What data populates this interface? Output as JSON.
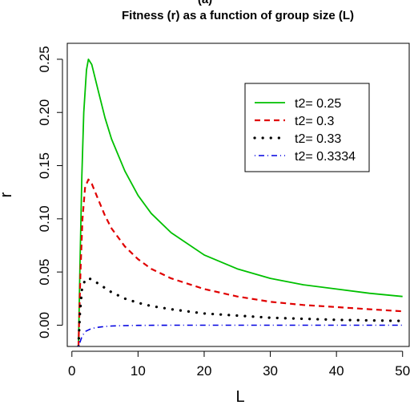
{
  "figure": {
    "cropped_label": "(a)"
  },
  "chart_data": {
    "type": "line",
    "title": "Fitness (r) as a function of group size (L)",
    "xlabel": "L",
    "ylabel": "r",
    "xlim": [
      -0.7,
      51
    ],
    "ylim": [
      -0.02,
      0.265
    ],
    "x_ticks": [
      0,
      10,
      20,
      30,
      40,
      50
    ],
    "x_tick_labels": [
      "0",
      "10",
      "20",
      "30",
      "40",
      "50"
    ],
    "y_ticks": [
      0.0,
      0.05,
      0.1,
      0.15,
      0.2,
      0.25
    ],
    "y_tick_labels": [
      "0.00",
      "0.05",
      "0.10",
      "0.15",
      "0.20",
      "0.25"
    ],
    "grid": false,
    "legend_position": "top-right",
    "series": [
      {
        "name": "t2= 0.25",
        "color": "#00c000",
        "line_style": "solid",
        "x": [
          1.0,
          1.2,
          1.5,
          1.8,
          2.2,
          2.5,
          3,
          4,
          5,
          6,
          8,
          10,
          12,
          15,
          20,
          25,
          30,
          35,
          40,
          45,
          50
        ],
        "y": [
          -0.02,
          0.05,
          0.14,
          0.2,
          0.24,
          0.25,
          0.245,
          0.22,
          0.195,
          0.175,
          0.145,
          0.122,
          0.105,
          0.087,
          0.066,
          0.053,
          0.044,
          0.038,
          0.034,
          0.03,
          0.027
        ]
      },
      {
        "name": "t2= 0.3",
        "color": "#e00000",
        "line_style": "dashed",
        "x": [
          1.0,
          1.3,
          1.6,
          2.0,
          2.5,
          3,
          4,
          5,
          6,
          8,
          10,
          12,
          15,
          20,
          25,
          30,
          35,
          40,
          45,
          50
        ],
        "y": [
          -0.02,
          0.05,
          0.1,
          0.13,
          0.137,
          0.133,
          0.118,
          0.103,
          0.091,
          0.074,
          0.062,
          0.053,
          0.044,
          0.034,
          0.027,
          0.022,
          0.019,
          0.017,
          0.015,
          0.013
        ]
      },
      {
        "name": "t2= 0.33",
        "color": "#000000",
        "line_style": "dotted",
        "x": [
          1.0,
          1.2,
          1.5,
          2.0,
          2.5,
          3,
          4,
          5,
          6,
          8,
          10,
          12,
          15,
          20,
          25,
          30,
          35,
          40,
          45,
          50
        ],
        "y": [
          -0.02,
          0.01,
          0.033,
          0.043,
          0.044,
          0.043,
          0.039,
          0.035,
          0.031,
          0.025,
          0.021,
          0.018,
          0.015,
          0.011,
          0.009,
          0.007,
          0.006,
          0.005,
          0.0045,
          0.004
        ]
      },
      {
        "name": "t2= 0.3334",
        "color": "#0000e0",
        "line_style": "dotdash",
        "x": [
          1.0,
          1.5,
          2,
          3,
          4,
          5,
          6,
          8,
          10,
          15,
          20,
          30,
          40,
          50
        ],
        "y": [
          -0.02,
          -0.011,
          -0.006,
          -0.003,
          -0.002,
          -0.0012,
          -0.0008,
          -0.0004,
          -0.0002,
          0,
          0,
          0,
          0,
          0
        ]
      }
    ]
  }
}
